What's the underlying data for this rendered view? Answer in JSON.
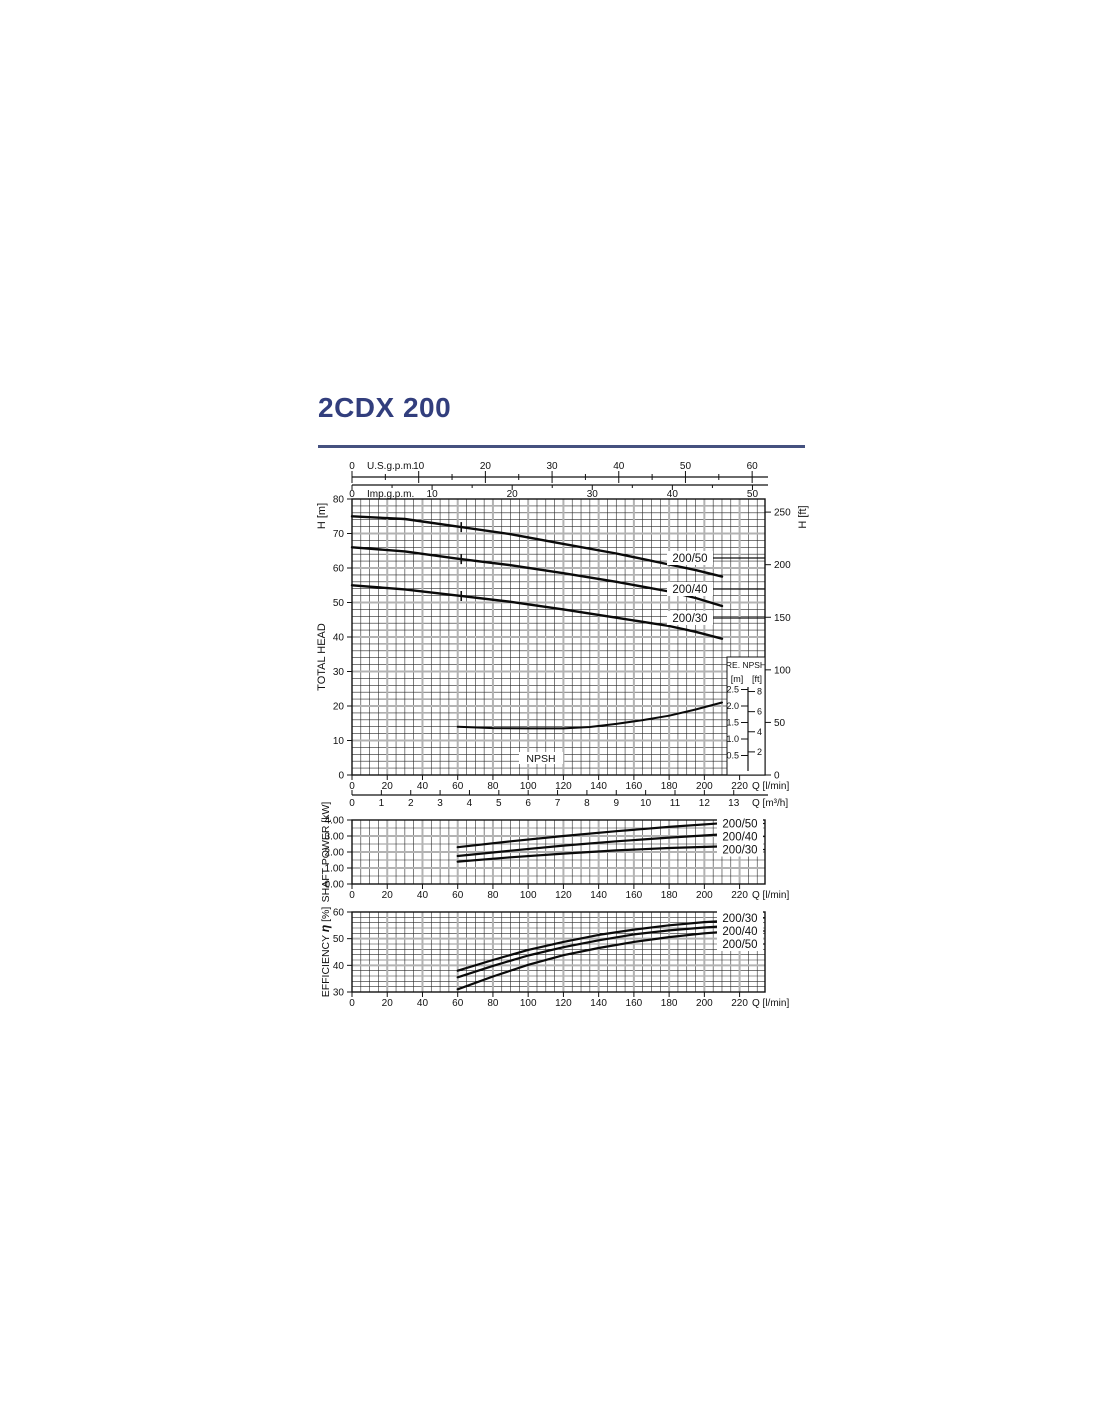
{
  "page": {
    "title": "2CDX 200",
    "title_color": "#323e7d",
    "rule_color": "#45517f",
    "curve_color": "#0a0a0a",
    "major_grid_color": "#b3b3b3",
    "minor_grid_color": "#2a2a2a"
  },
  "chart_data": {
    "type": "line",
    "x_unit_label": "Q [l/min]",
    "x_ticks": [
      0,
      20,
      40,
      60,
      80,
      100,
      120,
      140,
      160,
      180,
      200,
      220
    ],
    "top_scales": [
      {
        "id": "usgpm",
        "label": "U.S.g.p.m.",
        "ticks": [
          0,
          10,
          20,
          30,
          40,
          50,
          60
        ],
        "minor_step": 5,
        "lmin_per_unit": 3.78541
      },
      {
        "id": "impgpm",
        "label": "Imp.g.p.m.",
        "ticks": [
          0,
          10,
          20,
          30,
          40,
          50
        ],
        "minor_step": 5,
        "lmin_per_unit": 4.54609
      }
    ],
    "m3h_scale": {
      "label": "Q [m³/h]",
      "ticks": [
        0,
        1,
        2,
        3,
        4,
        5,
        6,
        7,
        8,
        9,
        10,
        11,
        12,
        13
      ],
      "lmin_per_unit": 16.6667
    },
    "charts": [
      {
        "id": "head",
        "axis_label_outer": "TOTAL HEAD",
        "axis_label": "H [m]",
        "axis_label_right": "H [ft]",
        "ylim": [
          0,
          80
        ],
        "xlim": [
          0,
          235
        ],
        "y_ticks": [
          0,
          10,
          20,
          30,
          40,
          50,
          60,
          70,
          80
        ],
        "y_right_ticks": [
          0,
          50,
          100,
          150,
          200,
          250
        ],
        "annotation": "NPSH",
        "marker_q": 62,
        "series": [
          {
            "name": "200/50",
            "points": [
              [
                0,
                75
              ],
              [
                30,
                74.2
              ],
              [
                60,
                72
              ],
              [
                90,
                69.8
              ],
              [
                120,
                67
              ],
              [
                150,
                64.2
              ],
              [
                180,
                61
              ],
              [
                195,
                59.4
              ],
              [
                210,
                57.5
              ]
            ]
          },
          {
            "name": "200/40",
            "points": [
              [
                0,
                66
              ],
              [
                30,
                64.8
              ],
              [
                60,
                62.7
              ],
              [
                90,
                60.8
              ],
              [
                120,
                58.5
              ],
              [
                150,
                56
              ],
              [
                180,
                53.2
              ],
              [
                195,
                51.3
              ],
              [
                210,
                49
              ]
            ]
          },
          {
            "name": "200/30",
            "points": [
              [
                0,
                55
              ],
              [
                30,
                53.8
              ],
              [
                60,
                52
              ],
              [
                90,
                50.2
              ],
              [
                120,
                48
              ],
              [
                150,
                45.6
              ],
              [
                180,
                43.2
              ],
              [
                195,
                41.5
              ],
              [
                210,
                39.5
              ]
            ]
          },
          {
            "name": "NPSH",
            "points": [
              [
                60,
                14
              ],
              [
                80,
                13.6
              ],
              [
                100,
                13.5
              ],
              [
                120,
                13.5
              ],
              [
                135,
                13.9
              ],
              [
                150,
                14.8
              ],
              [
                165,
                15.9
              ],
              [
                180,
                17.2
              ],
              [
                195,
                19
              ],
              [
                210,
                21
              ]
            ]
          }
        ]
      },
      {
        "id": "power",
        "axis_label_outer": "SHAFT POWER [kW]",
        "ylim": [
          0,
          4
        ],
        "y_tick_labels": [
          "0.00",
          "1.00",
          "2.00",
          "3.00",
          "4.00"
        ],
        "y_tick_values": [
          0,
          1,
          2,
          3,
          4
        ],
        "series": [
          {
            "name": "200/50",
            "points": [
              [
                60,
                2.3
              ],
              [
                90,
                2.67
              ],
              [
                120,
                3.0
              ],
              [
                150,
                3.3
              ],
              [
                180,
                3.57
              ],
              [
                210,
                3.8
              ]
            ]
          },
          {
            "name": "200/40",
            "points": [
              [
                60,
                1.75
              ],
              [
                90,
                2.08
              ],
              [
                120,
                2.4
              ],
              [
                150,
                2.67
              ],
              [
                180,
                2.9
              ],
              [
                210,
                3.1
              ]
            ]
          },
          {
            "name": "200/30",
            "points": [
              [
                60,
                1.4
              ],
              [
                90,
                1.67
              ],
              [
                120,
                1.9
              ],
              [
                150,
                2.1
              ],
              [
                180,
                2.25
              ],
              [
                210,
                2.35
              ]
            ]
          }
        ]
      },
      {
        "id": "eff",
        "axis_label_parts": [
          "EFFICIENCY",
          "η",
          "[%]"
        ],
        "ylim": [
          30,
          60
        ],
        "y_ticks": [
          30,
          40,
          50,
          60
        ],
        "series": [
          {
            "name": "200/30",
            "points": [
              [
                60,
                38
              ],
              [
                80,
                42
              ],
              [
                100,
                45.8
              ],
              [
                120,
                48.8
              ],
              [
                140,
                51.4
              ],
              [
                160,
                53.4
              ],
              [
                180,
                55
              ],
              [
                200,
                56.2
              ],
              [
                210,
                56.6
              ]
            ]
          },
          {
            "name": "200/40",
            "points": [
              [
                60,
                35.5
              ],
              [
                80,
                39.8
              ],
              [
                100,
                43.7
              ],
              [
                120,
                46.8
              ],
              [
                140,
                49.4
              ],
              [
                160,
                51.6
              ],
              [
                180,
                53.1
              ],
              [
                200,
                54.2
              ],
              [
                210,
                54.6
              ]
            ]
          },
          {
            "name": "200/50",
            "points": [
              [
                60,
                31
              ],
              [
                80,
                35.8
              ],
              [
                100,
                40.2
              ],
              [
                120,
                43.8
              ],
              [
                140,
                46.5
              ],
              [
                160,
                48.8
              ],
              [
                180,
                50.6
              ],
              [
                200,
                52
              ],
              [
                210,
                52.5
              ]
            ]
          }
        ]
      }
    ],
    "npsh_legend": {
      "title": "RE. NPSH",
      "col_headers": [
        "[m]",
        "[ft]"
      ],
      "m_tick_labels": [
        "2.5",
        "2.0",
        "1.5",
        "1.0",
        "0.5"
      ],
      "m_tick_values": [
        2.5,
        2.0,
        1.5,
        1.0,
        0.5
      ],
      "ft_tick_values": [
        8,
        6,
        4,
        2
      ]
    }
  }
}
